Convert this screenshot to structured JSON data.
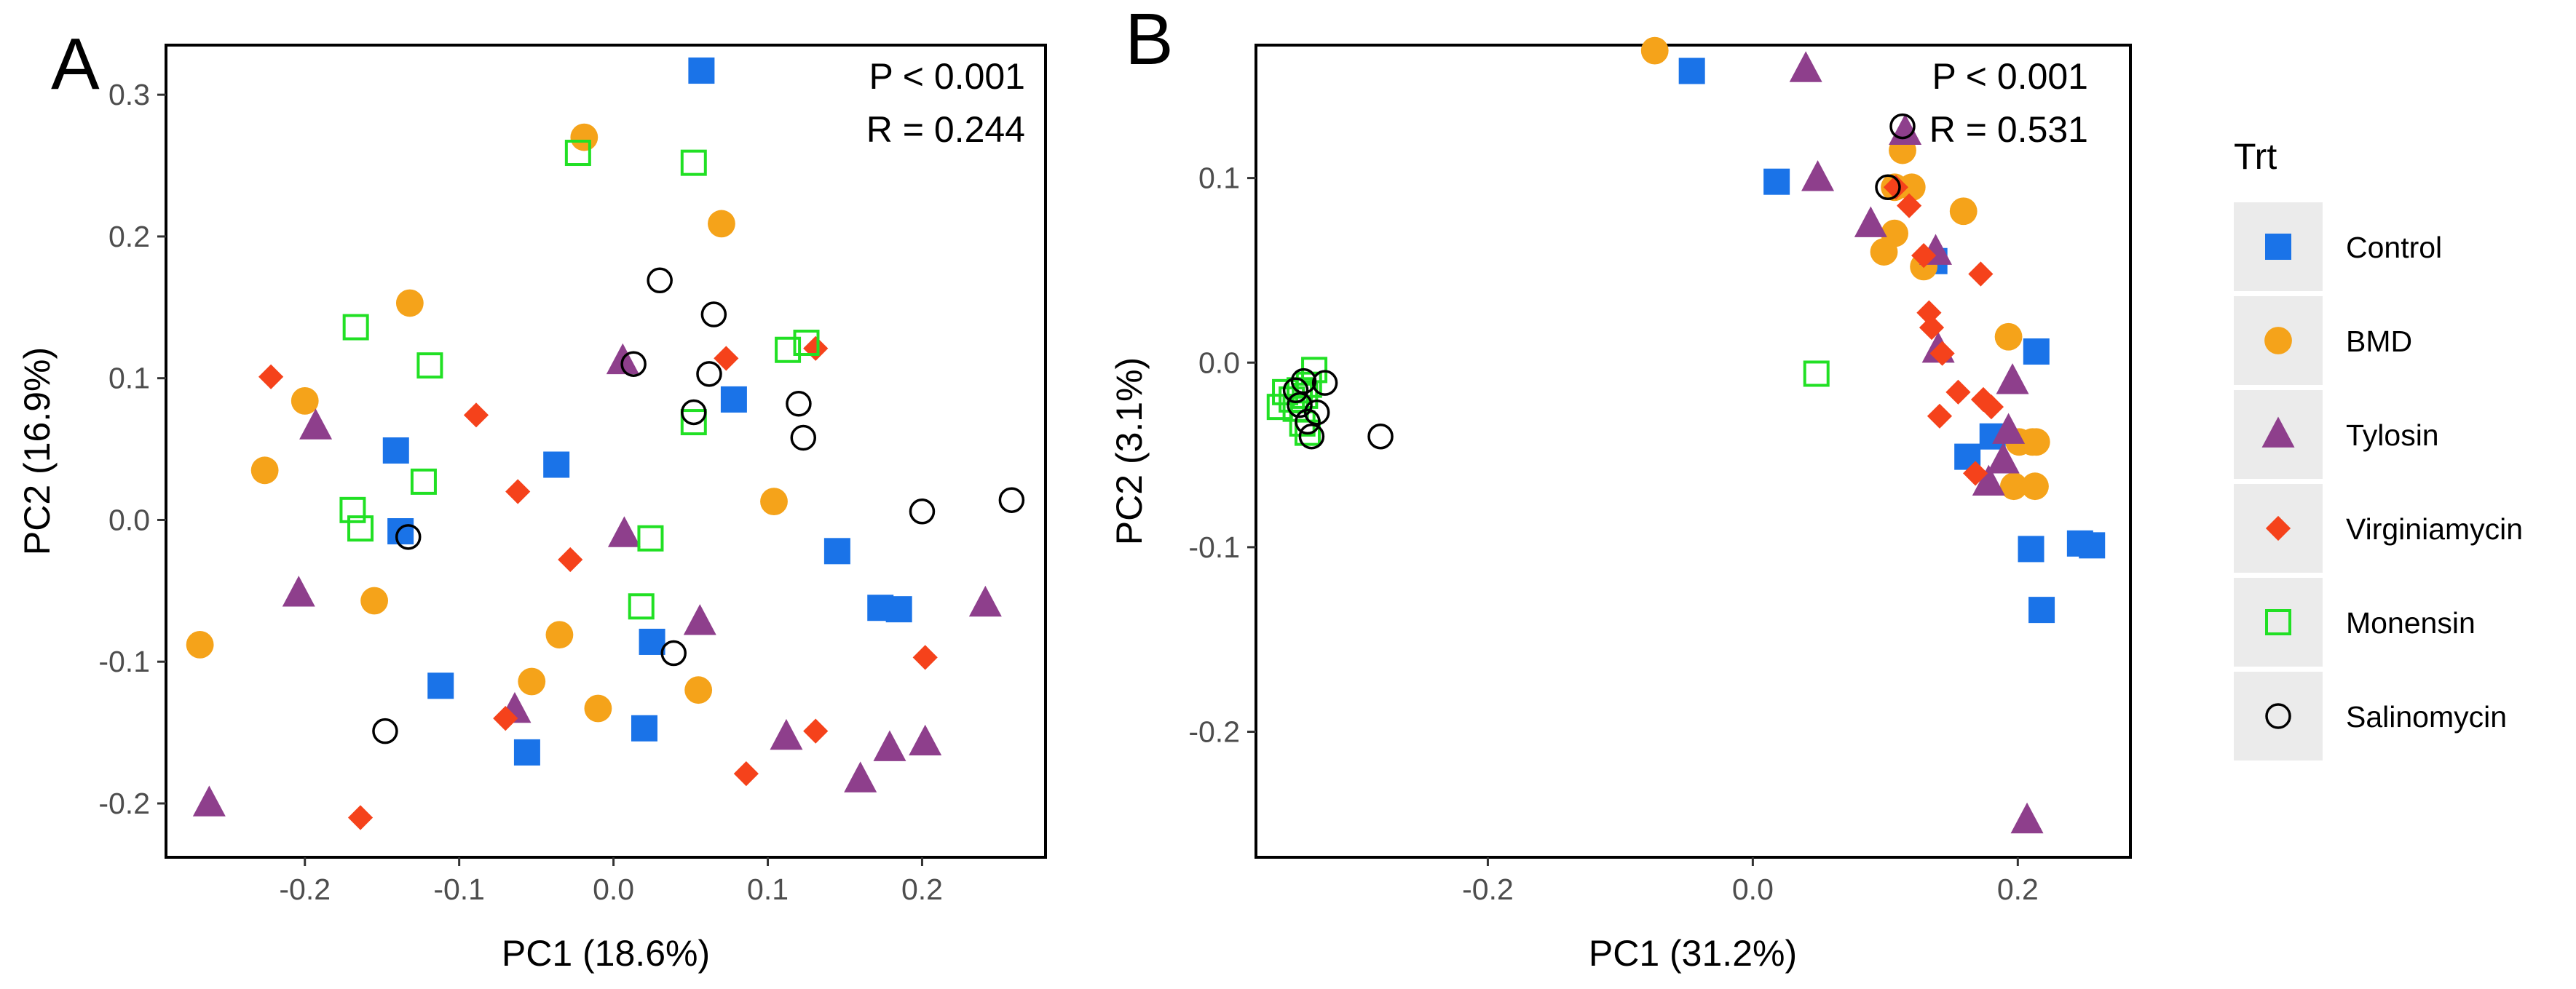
{
  "chart_data": [
    {
      "type": "scatter",
      "panel": "A",
      "xlabel": "PC1 (18.6%)",
      "ylabel": "PC2 (16.9%)",
      "xlim": [
        -0.29,
        0.28
      ],
      "ylim": [
        -0.238,
        0.335
      ],
      "xticks": [
        -0.2,
        -0.1,
        0.0,
        0.1,
        0.2
      ],
      "xtick_labels": [
        "-0.2",
        "-0.1",
        "0.0",
        "0.1",
        "0.2"
      ],
      "yticks": [
        -0.2,
        -0.1,
        0.0,
        0.1,
        0.2,
        0.3
      ],
      "ytick_labels": [
        "-0.2",
        "-0.1",
        "0.0",
        "0.1",
        "0.2",
        "0.3"
      ],
      "annotations": [
        "P < 0.001",
        "R = 0.244"
      ],
      "grid": false,
      "series": [
        {
          "name": "Control",
          "points": [
            [
              0.057,
              0.317
            ],
            [
              -0.141,
              0.049
            ],
            [
              -0.138,
              -0.008
            ],
            [
              -0.037,
              0.039
            ],
            [
              0.078,
              0.085
            ],
            [
              -0.112,
              -0.117
            ],
            [
              -0.056,
              -0.164
            ],
            [
              0.02,
              -0.147
            ],
            [
              0.025,
              -0.086
            ],
            [
              0.145,
              -0.022
            ],
            [
              0.173,
              -0.062
            ],
            [
              0.185,
              -0.063
            ]
          ]
        },
        {
          "name": "BMD",
          "points": [
            [
              -0.019,
              0.27
            ],
            [
              -0.132,
              0.153
            ],
            [
              0.07,
              0.209
            ],
            [
              -0.2,
              0.084
            ],
            [
              -0.226,
              0.035
            ],
            [
              -0.155,
              -0.057
            ],
            [
              -0.268,
              -0.088
            ],
            [
              -0.035,
              -0.081
            ],
            [
              -0.053,
              -0.114
            ],
            [
              -0.01,
              -0.133
            ],
            [
              0.055,
              -0.12
            ],
            [
              0.104,
              0.013
            ]
          ]
        },
        {
          "name": "Tylosin",
          "points": [
            [
              -0.193,
              0.066
            ],
            [
              -0.204,
              -0.052
            ],
            [
              -0.262,
              -0.2
            ],
            [
              0.006,
              0.112
            ],
            [
              0.007,
              -0.01
            ],
            [
              0.056,
              -0.072
            ],
            [
              -0.064,
              -0.134
            ],
            [
              0.112,
              -0.153
            ],
            [
              0.16,
              -0.183
            ],
            [
              0.179,
              -0.161
            ],
            [
              0.202,
              -0.157
            ],
            [
              0.241,
              -0.059
            ]
          ]
        },
        {
          "name": "Virginiamycin",
          "points": [
            [
              -0.222,
              0.101
            ],
            [
              -0.089,
              0.074
            ],
            [
              -0.062,
              0.02
            ],
            [
              -0.028,
              -0.028
            ],
            [
              0.073,
              0.114
            ],
            [
              0.131,
              0.121
            ],
            [
              -0.164,
              -0.21
            ],
            [
              -0.07,
              -0.14
            ],
            [
              0.086,
              -0.179
            ],
            [
              0.131,
              -0.149
            ],
            [
              0.202,
              -0.097
            ]
          ]
        },
        {
          "name": "Monensin",
          "points": [
            [
              -0.023,
              0.259
            ],
            [
              0.052,
              0.252
            ],
            [
              -0.167,
              0.136
            ],
            [
              -0.119,
              0.109
            ],
            [
              -0.123,
              0.027
            ],
            [
              -0.169,
              0.007
            ],
            [
              -0.164,
              -0.006
            ],
            [
              0.024,
              -0.013
            ],
            [
              0.018,
              -0.061
            ],
            [
              0.052,
              0.069
            ],
            [
              0.113,
              0.12
            ],
            [
              0.125,
              0.125
            ]
          ]
        },
        {
          "name": "Salinomycin",
          "points": [
            [
              0.03,
              0.169
            ],
            [
              0.065,
              0.145
            ],
            [
              0.013,
              0.11
            ],
            [
              0.062,
              0.103
            ],
            [
              0.052,
              0.076
            ],
            [
              0.12,
              0.082
            ],
            [
              0.123,
              0.058
            ],
            [
              -0.133,
              -0.012
            ],
            [
              0.039,
              -0.094
            ],
            [
              -0.148,
              -0.149
            ],
            [
              0.2,
              0.006
            ],
            [
              0.258,
              0.014
            ]
          ]
        }
      ]
    },
    {
      "type": "scatter",
      "panel": "B",
      "xlabel": "PC1 (31.2%)",
      "ylabel": "PC2 (3.1%)",
      "xlim": [
        -0.375,
        0.285
      ],
      "ylim": [
        -0.268,
        0.172
      ],
      "xticks": [
        -0.2,
        0.0,
        0.2
      ],
      "xtick_labels": [
        "-0.2",
        "0.0",
        "0.2"
      ],
      "yticks": [
        -0.2,
        -0.1,
        0.0,
        0.1
      ],
      "ytick_labels": [
        "-0.2",
        "-0.1",
        "0.0",
        "0.1"
      ],
      "annotations": [
        "P < 0.001",
        "R = 0.531"
      ],
      "grid": false,
      "series": [
        {
          "name": "Control",
          "points": [
            [
              -0.046,
              0.158
            ],
            [
              0.018,
              0.098
            ],
            [
              0.137,
              0.055
            ],
            [
              0.181,
              -0.04
            ],
            [
              0.162,
              -0.051
            ],
            [
              0.214,
              0.006
            ],
            [
              0.21,
              -0.101
            ],
            [
              0.247,
              -0.098
            ],
            [
              0.256,
              -0.099
            ],
            [
              0.218,
              -0.134
            ]
          ]
        },
        {
          "name": "BMD",
          "points": [
            [
              -0.074,
              0.169
            ],
            [
              0.113,
              0.115
            ],
            [
              0.107,
              0.095
            ],
            [
              0.099,
              0.06
            ],
            [
              0.107,
              0.07
            ],
            [
              0.12,
              0.095
            ],
            [
              0.129,
              0.052
            ],
            [
              0.159,
              0.082
            ],
            [
              0.193,
              0.014
            ],
            [
              0.197,
              -0.067
            ],
            [
              0.201,
              -0.043
            ],
            [
              0.211,
              -0.043
            ],
            [
              0.213,
              -0.067
            ],
            [
              0.214,
              -0.043
            ]
          ]
        },
        {
          "name": "Tylosin",
          "points": [
            [
              0.04,
              0.159
            ],
            [
              0.049,
              0.1
            ],
            [
              0.089,
              0.075
            ],
            [
              0.115,
              0.125
            ],
            [
              0.138,
              0.06
            ],
            [
              0.14,
              0.007
            ],
            [
              0.196,
              -0.01
            ],
            [
              0.193,
              -0.037
            ],
            [
              0.189,
              -0.053
            ],
            [
              0.178,
              -0.065
            ],
            [
              0.207,
              -0.248
            ]
          ]
        },
        {
          "name": "Virginiamycin",
          "points": [
            [
              0.108,
              0.095
            ],
            [
              0.118,
              0.085
            ],
            [
              0.129,
              0.058
            ],
            [
              0.133,
              0.027
            ],
            [
              0.135,
              0.019
            ],
            [
              0.172,
              0.048
            ],
            [
              0.143,
              0.005
            ],
            [
              0.155,
              -0.016
            ],
            [
              0.168,
              -0.06
            ],
            [
              0.174,
              -0.02
            ],
            [
              0.18,
              -0.024
            ],
            [
              0.141,
              -0.029
            ]
          ]
        },
        {
          "name": "Monensin",
          "points": [
            [
              0.048,
              -0.006
            ],
            [
              -0.353,
              -0.016
            ],
            [
              -0.348,
              -0.02
            ],
            [
              -0.345,
              -0.025
            ],
            [
              -0.342,
              -0.015
            ],
            [
              -0.34,
              -0.033
            ],
            [
              -0.338,
              -0.018
            ],
            [
              -0.335,
              -0.012
            ],
            [
              -0.331,
              -0.004
            ],
            [
              -0.357,
              -0.024
            ],
            [
              -0.336,
              -0.038
            ]
          ]
        },
        {
          "name": "Salinomycin",
          "points": [
            [
              0.113,
              0.128
            ],
            [
              0.102,
              0.095
            ],
            [
              -0.281,
              -0.04
            ],
            [
              -0.333,
              -0.04
            ],
            [
              -0.339,
              -0.01
            ],
            [
              -0.342,
              -0.023
            ],
            [
              -0.336,
              -0.032
            ],
            [
              -0.329,
              -0.027
            ],
            [
              -0.345,
              -0.015
            ],
            [
              -0.323,
              -0.011
            ]
          ]
        }
      ]
    }
  ],
  "panels": {
    "a": {
      "letter": "A",
      "xlabel": "PC1 (18.6%)",
      "ylabel": "PC2 (16.9%)",
      "stat_p": "P < 0.001",
      "stat_r": "R = 0.244"
    },
    "b": {
      "letter": "B",
      "xlabel": "PC1 (31.2%)",
      "ylabel": "PC2 (3.1%)",
      "stat_p": "P < 0.001",
      "stat_r": "R = 0.531"
    }
  },
  "legend": {
    "title": "Trt",
    "placement": "right",
    "items": [
      {
        "label": "Control",
        "shape": "square",
        "color": "#1a73e8"
      },
      {
        "label": "BMD",
        "shape": "circle",
        "color": "#f5a31a"
      },
      {
        "label": "Tylosin",
        "shape": "triangle",
        "color": "#8e3f8c"
      },
      {
        "label": "Virginiamycin",
        "shape": "diamond",
        "color": "#f5421b"
      },
      {
        "label": "Monensin",
        "shape": "open-square",
        "color": "#21e024"
      },
      {
        "label": "Salinomycin",
        "shape": "open-circle",
        "color": "#000000"
      }
    ]
  }
}
